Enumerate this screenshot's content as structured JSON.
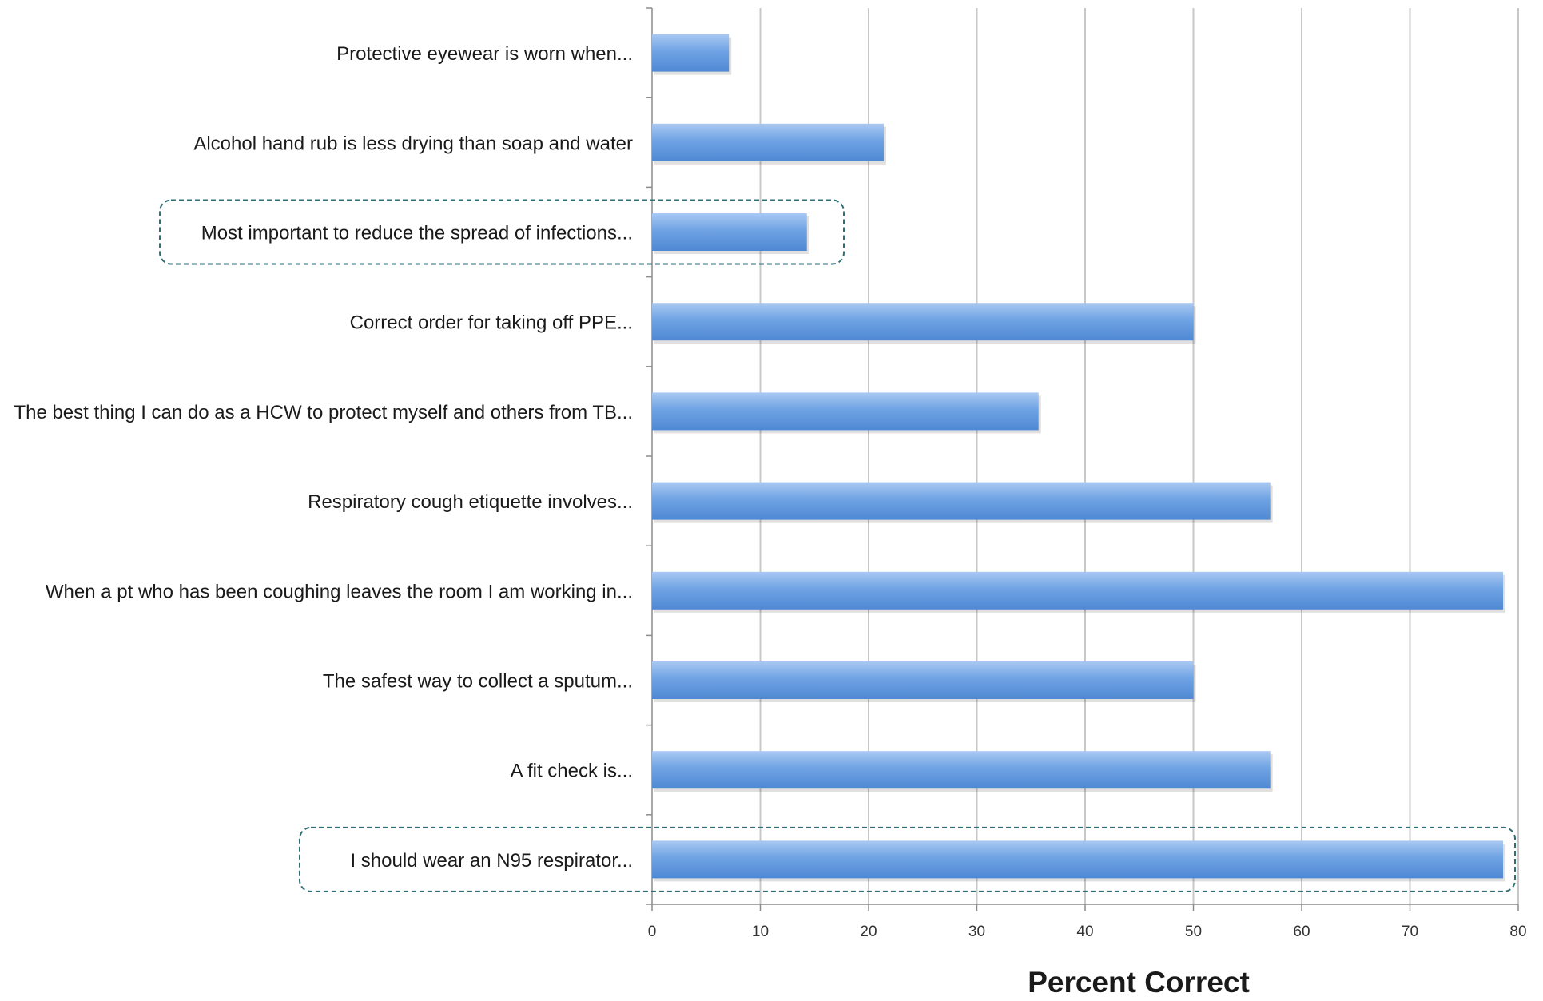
{
  "chart_data": {
    "type": "bar",
    "orientation": "horizontal",
    "categories": [
      "Protective eyewear is worn when...",
      "Alcohol hand rub is less drying than soap and water",
      "Most important to reduce the spread of infections...",
      "Correct order for taking off PPE...",
      "The best thing I can do as a HCW to protect myself and others from TB...",
      "Respiratory cough etiquette involves...",
      "When a pt who has been coughing leaves the room I am working in...",
      "The safest way to collect a sputum...",
      "A fit check is...",
      "I should wear an N95 respirator..."
    ],
    "values": [
      7.1,
      21.4,
      14.3,
      50.0,
      35.7,
      57.1,
      78.6,
      50.0,
      57.1,
      78.6
    ],
    "highlighted": [
      2,
      9
    ],
    "title": "",
    "xlabel": "Percent Correct",
    "ylabel": "",
    "xlim": [
      0,
      80
    ],
    "xticks": [
      0,
      10,
      20,
      30,
      40,
      50,
      60,
      70,
      80
    ],
    "grid": true,
    "legend": "none",
    "colors": {
      "bar": "#6fa3e4",
      "bar_light": "#a9c9f2",
      "bar_dark": "#4f88d3",
      "grid": "#c8c8c8",
      "axis": "#8c8c8c",
      "highlight_border": "#2f6f73",
      "text": "#1a1a1a"
    }
  }
}
